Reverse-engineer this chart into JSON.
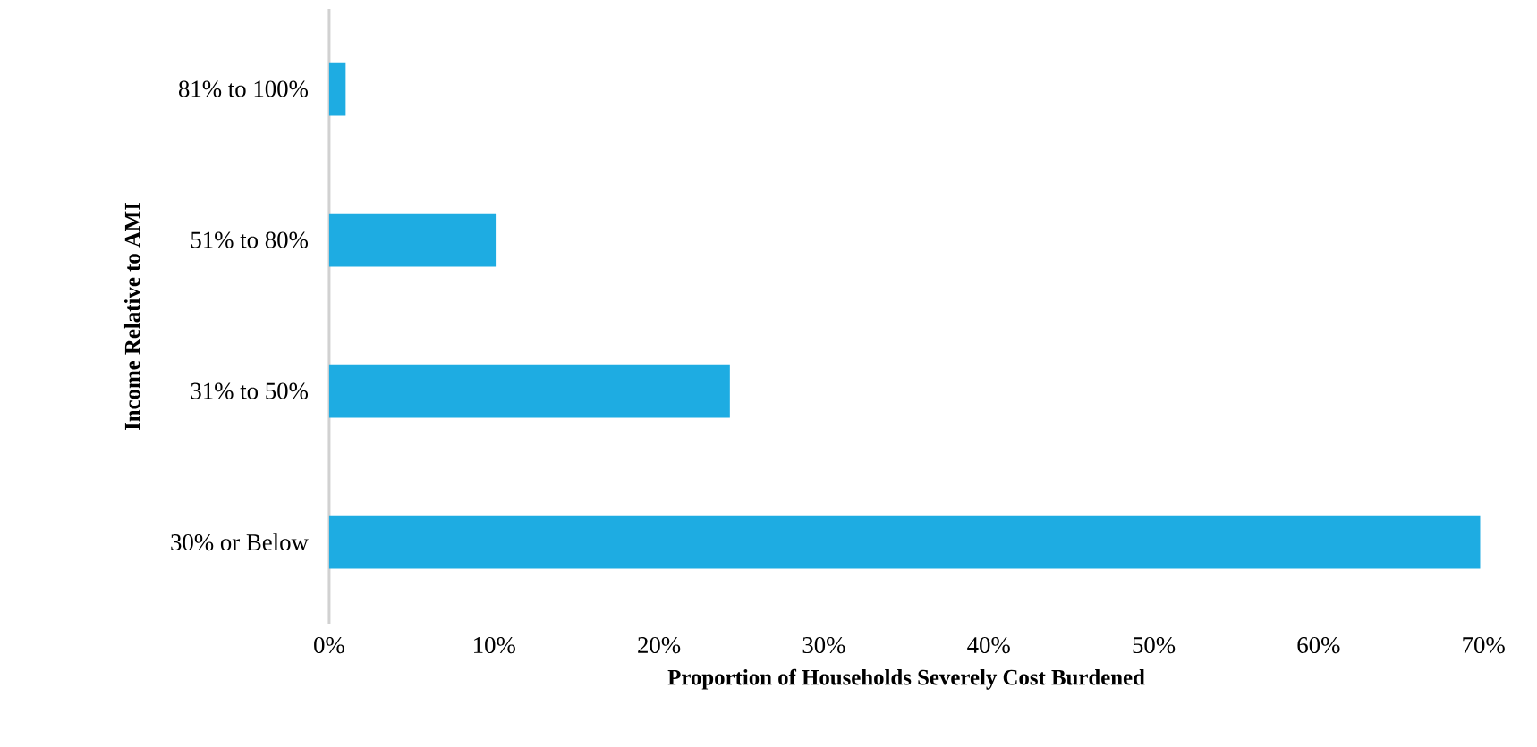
{
  "chart_data": {
    "type": "bar",
    "orientation": "horizontal",
    "xlabel": "Proportion of Households Severely Cost Burdened",
    "ylabel": "Income Relative to AMI",
    "categories": [
      "81% to 100%",
      "51% to 80%",
      "31% to 50%",
      "30% or Below"
    ],
    "values": [
      1.0,
      10.1,
      24.3,
      69.8
    ],
    "color": "#1eace2",
    "xlim": [
      0,
      70
    ],
    "xticks": [
      {
        "value": 0,
        "label": "0%"
      },
      {
        "value": 10,
        "label": "10%"
      },
      {
        "value": 20,
        "label": "20%"
      },
      {
        "value": 30,
        "label": "30%"
      },
      {
        "value": 40,
        "label": "40%"
      },
      {
        "value": 50,
        "label": "50%"
      },
      {
        "value": 60,
        "label": "60%"
      },
      {
        "value": 70,
        "label": "70%"
      }
    ]
  }
}
